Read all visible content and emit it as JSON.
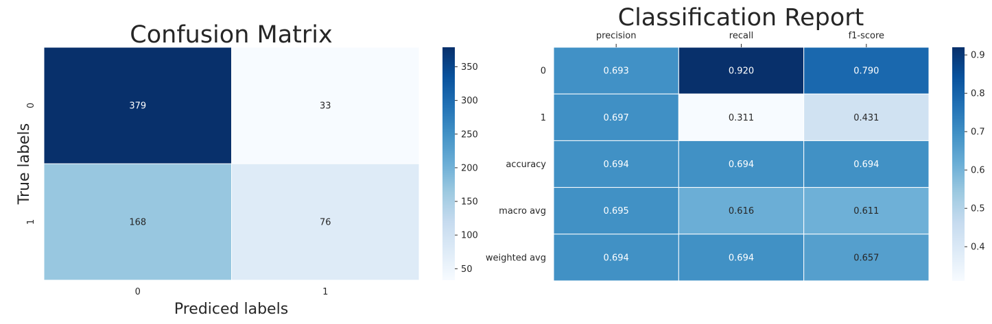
{
  "chart_data": [
    {
      "type": "heatmap",
      "title": "Confusion Matrix",
      "xlabel": "Prediced labels",
      "ylabel": "True labels",
      "x_categories": [
        "0",
        "1"
      ],
      "y_categories": [
        "0",
        "1"
      ],
      "values": [
        [
          379,
          33
        ],
        [
          168,
          76
        ]
      ],
      "colormap": "Blues",
      "color_range": [
        33,
        379
      ],
      "colorbar_ticks": [
        "50",
        "100",
        "150",
        "200",
        "250",
        "300",
        "350"
      ],
      "colorbar_tick_values": [
        50,
        100,
        150,
        200,
        250,
        300,
        350
      ],
      "annotations": true,
      "grid": false,
      "legend": "colorbar-right"
    },
    {
      "type": "heatmap",
      "title": "Classification Report",
      "xlabel": "",
      "ylabel": "",
      "x_categories": [
        "precision",
        "recall",
        "f1-score"
      ],
      "y_categories": [
        "0",
        "1",
        "accuracy",
        "macro avg",
        "weighted avg"
      ],
      "values": [
        [
          0.693,
          0.92,
          0.79
        ],
        [
          0.697,
          0.311,
          0.431
        ],
        [
          0.694,
          0.694,
          0.694
        ],
        [
          0.695,
          0.616,
          0.611
        ],
        [
          0.694,
          0.694,
          0.657
        ]
      ],
      "value_format": "0.000",
      "x_axis_position": "top",
      "colormap": "Blues",
      "color_range": [
        0.311,
        0.92
      ],
      "colorbar_ticks": [
        "0.4",
        "0.5",
        "0.6",
        "0.7",
        "0.8",
        "0.9"
      ],
      "colorbar_tick_values": [
        0.4,
        0.5,
        0.6,
        0.7,
        0.8,
        0.9
      ],
      "annotations": true,
      "grid": false,
      "legend": "colorbar-right"
    }
  ]
}
